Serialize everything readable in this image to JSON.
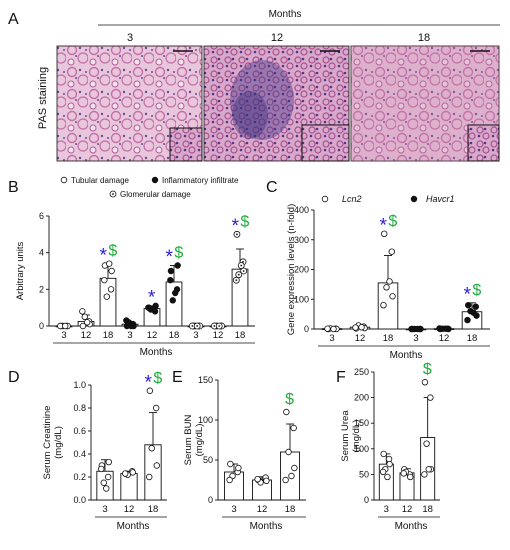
{
  "panels": [
    "A",
    "B",
    "C",
    "D",
    "E",
    "F"
  ],
  "panel_a": {
    "header": "Months",
    "columns": [
      "3",
      "12",
      "18"
    ],
    "row_label": "PAS staining"
  },
  "sig_symbols": {
    "star": "*",
    "dollar": "$"
  },
  "colors": {
    "star": "#2b1fd6",
    "dollar": "#1fae3c",
    "bar_edge": "#111111",
    "tissue_bg": "#e8c7dc",
    "tissue_tubule": "#c46fa6",
    "tissue_nuclei": "#5a3c8e"
  },
  "chart_data": [
    {
      "panel": "B",
      "type": "bar",
      "ylabel": "Arbitrary units",
      "xlabel": "Months",
      "ylim": [
        0,
        6
      ],
      "yticks": [
        0,
        2,
        4,
        6
      ],
      "legend": [
        "Tubular damage",
        "Inflammatory infiltrate",
        "Glomerular damage"
      ],
      "categories": [
        "3",
        "12",
        "18",
        "3",
        "12",
        "18",
        "3",
        "12",
        "18"
      ],
      "series": [
        {
          "name": "Tubular damage",
          "marker": "open",
          "groups": [
            {
              "x": "3",
              "value": 0.0,
              "sd": 0.05,
              "points": [
                0,
                0,
                0,
                0,
                0,
                0
              ]
            },
            {
              "x": "12",
              "value": 0.25,
              "sd": 0.35,
              "points": [
                0,
                0.25,
                0.5,
                0.1,
                0.8,
                0.2
              ]
            },
            {
              "x": "18",
              "value": 2.6,
              "sd": 0.75,
              "points": [
                3.3,
                2.0,
                1.6,
                3.0,
                2.5,
                3.4
              ],
              "sig": [
                "*",
                "$"
              ]
            }
          ]
        },
        {
          "name": "Inflammatory infiltrate",
          "marker": "filled",
          "groups": [
            {
              "x": "3",
              "value": 0.1,
              "sd": 0.15,
              "points": [
                0,
                0.1,
                0.2,
                0,
                0.3,
                0
              ]
            },
            {
              "x": "12",
              "value": 0.95,
              "sd": 0.15,
              "points": [
                1.0,
                0.8,
                0.9,
                1.1,
                1.0,
                0.9
              ],
              "sig": [
                "*"
              ]
            },
            {
              "x": "18",
              "value": 2.4,
              "sd": 0.9,
              "points": [
                3.0,
                2.0,
                1.4,
                3.3,
                2.5,
                1.8
              ],
              "sig": [
                "*",
                "$"
              ]
            }
          ]
        },
        {
          "name": "Glomerular damage",
          "marker": "dotted",
          "groups": [
            {
              "x": "3",
              "value": 0.0,
              "sd": 0.05,
              "points": [
                0,
                0,
                0,
                0,
                0,
                0
              ]
            },
            {
              "x": "12",
              "value": 0.0,
              "sd": 0.05,
              "points": [
                0,
                0,
                0,
                0,
                0,
                0
              ]
            },
            {
              "x": "18",
              "value": 3.1,
              "sd": 1.1,
              "points": [
                5.0,
                3.5,
                2.8,
                3.0,
                2.5,
                3.3
              ],
              "sig": [
                "*",
                "$"
              ]
            }
          ]
        }
      ]
    },
    {
      "panel": "C",
      "type": "bar",
      "ylabel": "Gene expression levels (n-fold)",
      "xlabel": "Months",
      "ylim": [
        0,
        400
      ],
      "yticks": [
        0,
        100,
        200,
        300,
        400
      ],
      "legend": [
        "Lcn2",
        "Havcr1"
      ],
      "categories": [
        "3",
        "12",
        "18",
        "3",
        "12",
        "18"
      ],
      "series": [
        {
          "name": "Lcn2",
          "marker": "open",
          "groups": [
            {
              "x": "3",
              "value": 1,
              "sd": 1,
              "points": [
                0,
                1,
                2,
                0,
                1,
                0
              ]
            },
            {
              "x": "12",
              "value": 6,
              "sd": 5,
              "points": [
                2,
                8,
                12,
                3,
                5,
                6
              ]
            },
            {
              "x": "18",
              "value": 155,
              "sd": 92,
              "points": [
                320,
                260,
                140,
                110,
                80,
                160
              ],
              "sig": [
                "*",
                "$"
              ]
            }
          ]
        },
        {
          "name": "Havcr1",
          "marker": "filled",
          "groups": [
            {
              "x": "3",
              "value": 0,
              "sd": 1,
              "points": [
                0,
                0,
                0,
                0,
                0,
                0
              ]
            },
            {
              "x": "12",
              "value": 1,
              "sd": 1,
              "points": [
                0,
                1,
                1,
                0,
                2,
                1
              ]
            },
            {
              "x": "18",
              "value": 58,
              "sd": 30,
              "points": [
                80,
                75,
                60,
                45,
                30,
                55
              ],
              "sig": [
                "*",
                "$"
              ]
            }
          ]
        }
      ]
    },
    {
      "panel": "D",
      "type": "bar",
      "ylabel": "Serum Creatinine (mg/dL)",
      "xlabel": "Months",
      "ylim": [
        0,
        1.0
      ],
      "yticks": [
        0.0,
        0.2,
        0.4,
        0.6,
        0.8,
        1.0
      ],
      "categories": [
        "3",
        "12",
        "18"
      ],
      "values": [
        0.25,
        0.23,
        0.48
      ],
      "sd": [
        0.1,
        0.02,
        0.28
      ],
      "points": [
        [
          0.3,
          0.2,
          0.15,
          0.33,
          0.27,
          0.1
        ],
        [
          0.23,
          0.25,
          0.22,
          0.24,
          0.23
        ],
        [
          0.95,
          0.8,
          0.45,
          0.3,
          0.2
        ]
      ],
      "sig": [
        [],
        [],
        [
          "*",
          "$"
        ]
      ]
    },
    {
      "panel": "E",
      "type": "bar",
      "ylabel": "Serum BUN (mg/dL)",
      "xlabel": "Months",
      "ylim": [
        0,
        150
      ],
      "yticks": [
        0,
        50,
        100,
        150
      ],
      "categories": [
        "3",
        "12",
        "18"
      ],
      "values": [
        35,
        25,
        60
      ],
      "sd": [
        10,
        4,
        35
      ],
      "points": [
        [
          45,
          35,
          30,
          40,
          25
        ],
        [
          25,
          28,
          22,
          24,
          26
        ],
        [
          110,
          90,
          60,
          40,
          25,
          30
        ]
      ],
      "sig": [
        [],
        [],
        [
          "$"
        ]
      ]
    },
    {
      "panel": "F",
      "type": "bar",
      "ylabel": "Serum Urea (mg/dL)",
      "xlabel": "Months",
      "ylim": [
        0,
        250
      ],
      "yticks": [
        0,
        50,
        100,
        150,
        200,
        250
      ],
      "categories": [
        "3",
        "12",
        "18"
      ],
      "values": [
        70,
        53,
        122
      ],
      "sd": [
        20,
        8,
        78
      ],
      "points": [
        [
          90,
          80,
          60,
          70,
          55,
          45
        ],
        [
          60,
          50,
          55,
          45,
          52
        ],
        [
          230,
          200,
          110,
          60,
          50,
          60
        ]
      ],
      "sig": [
        [],
        [],
        [
          "$"
        ]
      ]
    }
  ]
}
